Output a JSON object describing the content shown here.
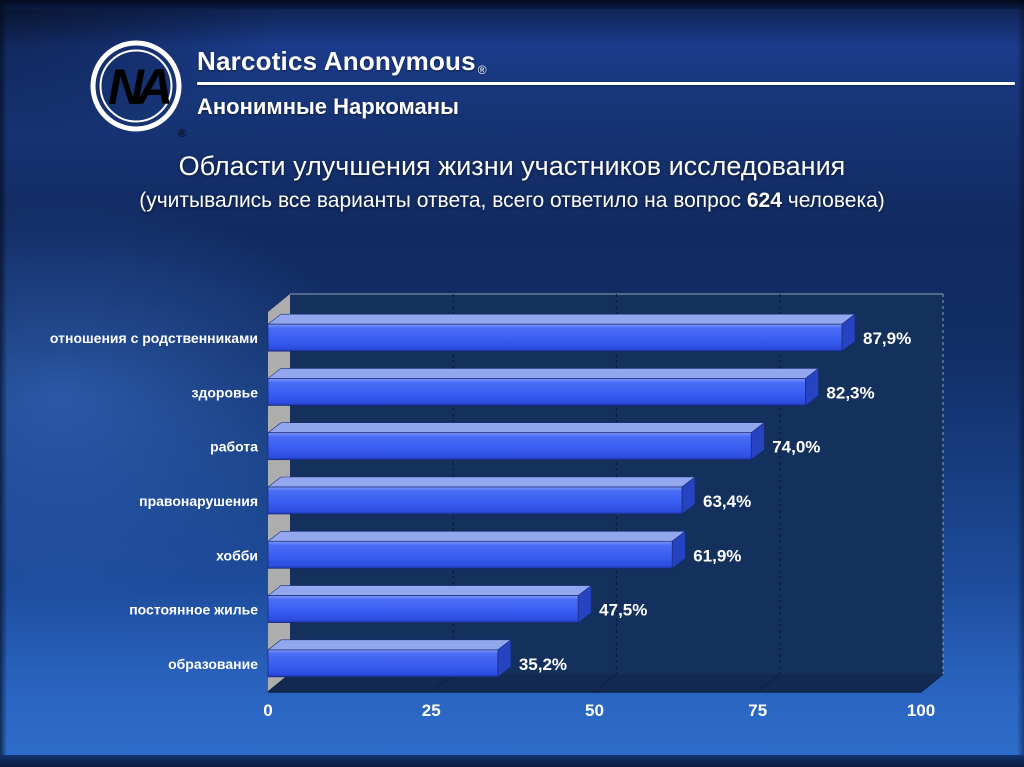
{
  "slide": {
    "header": {
      "logo_monogram": "NA",
      "logo_registered": "®",
      "brand_en": "Narcotics Anonymous",
      "brand_en_registered": "®",
      "brand_ru": "Анонимные Наркоманы"
    },
    "title": "Области улучшения жизни участников исследования",
    "subtitle_prefix": "(учитывались все варианты ответа, всего ответило на вопрос ",
    "subtitle_bold": "624",
    "subtitle_suffix": " человека)"
  },
  "chart_data": {
    "type": "bar",
    "orientation": "horizontal",
    "title": "Области улучшения жизни участников исследования",
    "categories": [
      "отношения с родственниками",
      "здоровье",
      "работа",
      "правонарушения",
      "хобби",
      "постоянное жилье",
      "образование"
    ],
    "values": [
      87.9,
      82.3,
      74.0,
      63.4,
      61.9,
      47.5,
      35.2
    ],
    "value_labels": [
      "87,9%",
      "82,3%",
      "74,0%",
      "63,4%",
      "61,9%",
      "47,5%",
      "35,2%"
    ],
    "x_ticks": [
      0,
      25,
      50,
      75,
      100
    ],
    "x_tick_labels": [
      "0",
      "25",
      "50",
      "75",
      "100"
    ],
    "xlim": [
      0,
      100
    ],
    "grid": "vertical-dashed-at-25-50-75",
    "legend": "none",
    "style": "3d-horizontal-bars-with-granite-wall",
    "colors": {
      "bar_front": "#3a5ef2",
      "bar_top": "#93a7ef",
      "bar_side": "#2644c2",
      "plot_bg": "#14305c",
      "gridline": "#0a1c3e",
      "border": "#8fa2bd",
      "wall": "#a4a4a4",
      "floor": "#122a52",
      "label_text": "#ffffff"
    }
  }
}
